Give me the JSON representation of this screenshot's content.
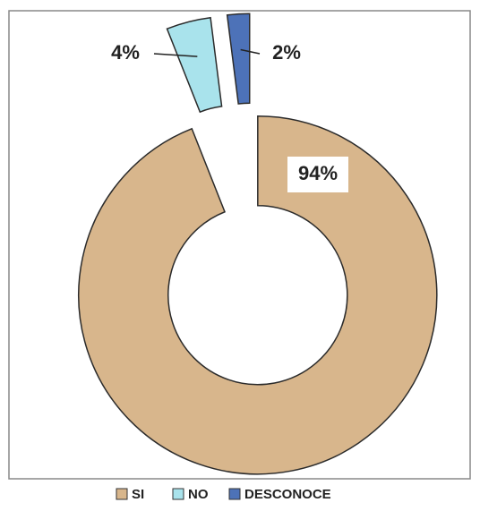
{
  "chart_data": {
    "type": "donut",
    "categories": [
      "SI",
      "NO",
      "DESCONOCE"
    ],
    "values": [
      94,
      4,
      2
    ],
    "value_labels": [
      "94%",
      "4%",
      "2%"
    ],
    "colors": [
      "#d8b68c",
      "#a9e3ec",
      "#4d72b8"
    ]
  }
}
